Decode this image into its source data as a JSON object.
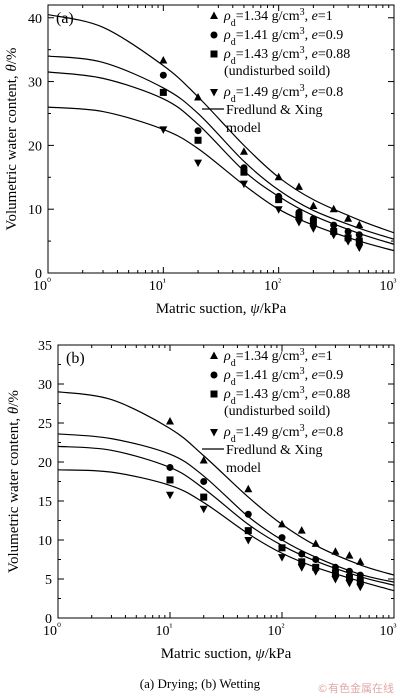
{
  "caption": "(a) Drying; (b) Wetting",
  "watermark": "©有色金属在线",
  "chart_data": [
    {
      "type": "scatter",
      "panel_label": "(a)",
      "xlabel": "Matric suction, ψ/kPa",
      "ylabel": "Volumetric water content, θ/%",
      "xscale": "log",
      "xlim": [
        1,
        1000
      ],
      "ylim": [
        0,
        42
      ],
      "xticks": [
        1,
        10,
        100,
        1000
      ],
      "xtick_labels": [
        "10⁰",
        "10¹",
        "10²",
        "10³"
      ],
      "yticks": [
        0,
        10,
        20,
        30,
        40
      ],
      "legend_position": "top-right",
      "model_label": [
        "Fredlund & Xing",
        "model"
      ],
      "series": [
        {
          "name": "ρd=1.34 g/cm³, e=1",
          "marker": "triangle-up",
          "x": [
            10,
            20,
            50,
            100,
            150,
            200,
            300,
            400,
            500
          ],
          "y": [
            33.3,
            27.5,
            19.0,
            15.0,
            13.5,
            10.5,
            10.0,
            8.5,
            7.5
          ],
          "curve": {
            "x": [
              1,
              3,
              10,
              20,
              50,
              100,
              200,
              500,
              1000
            ],
            "y": [
              40.5,
              38.5,
              32.5,
              27.6,
              20.0,
              15.0,
              11.5,
              8.3,
              6.3
            ]
          }
        },
        {
          "name": "ρd=1.41 g/cm³, e=0.9",
          "marker": "circle",
          "x": [
            10,
            20,
            50,
            100,
            150,
            200,
            300,
            400,
            500
          ],
          "y": [
            31.0,
            22.3,
            16.5,
            12.0,
            9.5,
            8.5,
            7.5,
            6.5,
            6.0
          ],
          "curve": {
            "x": [
              1,
              3,
              10,
              20,
              50,
              100,
              200,
              500,
              1000
            ],
            "y": [
              34.0,
              33.0,
              29.0,
              25.0,
              17.5,
              13.0,
              9.8,
              7.0,
              5.3
            ]
          }
        },
        {
          "name": "ρd=1.43 g/cm³, e=0.88",
          "sub": "(undisturbed soild)",
          "marker": "square",
          "x": [
            10,
            20,
            50,
            100,
            150,
            200,
            300,
            400,
            500
          ],
          "y": [
            28.3,
            20.8,
            15.8,
            11.5,
            9.0,
            8.0,
            6.5,
            5.5,
            5.0
          ],
          "curve": {
            "x": [
              1,
              3,
              10,
              20,
              50,
              100,
              200,
              500,
              1000
            ],
            "y": [
              31.5,
              30.5,
              27.3,
              23.3,
              16.0,
              12.0,
              9.0,
              6.2,
              4.5
            ]
          }
        },
        {
          "name": "ρd=1.49 g/cm³, e=0.8",
          "marker": "triangle-down",
          "x": [
            10,
            20,
            50,
            100,
            150,
            200,
            300,
            400,
            500
          ],
          "y": [
            22.5,
            17.3,
            14.0,
            10.0,
            8.0,
            7.0,
            6.0,
            5.0,
            4.0
          ],
          "curve": {
            "x": [
              1,
              3,
              10,
              20,
              50,
              100,
              200,
              500,
              1000
            ],
            "y": [
              26.0,
              25.3,
              22.5,
              19.5,
              13.8,
              10.0,
              7.5,
              5.0,
              3.5
            ]
          }
        }
      ]
    },
    {
      "type": "scatter",
      "panel_label": "(b)",
      "xlabel": "Matric suction, ψ/kPa",
      "ylabel": "Volumetric water content, θ/%",
      "xscale": "log",
      "xlim": [
        1,
        1000
      ],
      "ylim": [
        0,
        35
      ],
      "xticks": [
        1,
        10,
        100,
        1000
      ],
      "xtick_labels": [
        "10⁰",
        "10¹",
        "10²",
        "10³"
      ],
      "yticks": [
        0,
        5,
        10,
        15,
        20,
        25,
        30,
        35
      ],
      "legend_position": "top-right",
      "model_label": [
        "Fredlund & Xing",
        "model"
      ],
      "series": [
        {
          "name": "ρd=1.34 g/cm³, e=1",
          "marker": "triangle-up",
          "x": [
            10,
            20,
            50,
            100,
            150,
            200,
            300,
            400,
            500
          ],
          "y": [
            25.2,
            20.2,
            16.5,
            12.0,
            11.2,
            9.5,
            8.5,
            8.0,
            7.2
          ],
          "curve": {
            "x": [
              1,
              3,
              10,
              20,
              50,
              100,
              200,
              500,
              1000
            ],
            "y": [
              29.0,
              28.0,
              24.3,
              20.8,
              15.5,
              12.0,
              9.3,
              6.8,
              5.5
            ]
          }
        },
        {
          "name": "ρd=1.41 g/cm³, e=0.9",
          "marker": "circle",
          "x": [
            10,
            20,
            50,
            100,
            150,
            200,
            300,
            400,
            500
          ],
          "y": [
            19.3,
            17.5,
            13.3,
            10.3,
            8.2,
            7.5,
            6.5,
            6.0,
            5.5
          ],
          "curve": {
            "x": [
              1,
              3,
              10,
              20,
              50,
              100,
              200,
              500,
              1000
            ],
            "y": [
              23.6,
              23.0,
              21.0,
              18.2,
              13.0,
              10.0,
              7.8,
              5.6,
              4.6
            ]
          }
        },
        {
          "name": "ρd=1.43 g/cm³, e=0.88",
          "sub": "(undisturbed soild)",
          "marker": "square",
          "x": [
            10,
            20,
            50,
            100,
            150,
            200,
            300,
            400,
            500
          ],
          "y": [
            17.7,
            15.5,
            11.2,
            9.0,
            7.2,
            6.5,
            5.8,
            5.2,
            4.8
          ],
          "curve": {
            "x": [
              1,
              3,
              10,
              20,
              50,
              100,
              200,
              500,
              1000
            ],
            "y": [
              22.0,
              21.5,
              19.3,
              16.6,
              12.0,
              9.3,
              7.3,
              5.3,
              4.2
            ]
          }
        },
        {
          "name": "ρd=1.49 g/cm³, e=0.8",
          "marker": "triangle-down",
          "x": [
            10,
            20,
            50,
            100,
            150,
            200,
            300,
            400,
            500
          ],
          "y": [
            15.8,
            14.0,
            10.0,
            7.8,
            6.5,
            6.0,
            5.0,
            4.5,
            4.0
          ],
          "curve": {
            "x": [
              1,
              3,
              10,
              20,
              50,
              100,
              200,
              500,
              1000
            ],
            "y": [
              19.0,
              18.7,
              17.0,
              14.8,
              10.8,
              8.3,
              6.5,
              4.7,
              3.5
            ]
          }
        }
      ]
    }
  ]
}
